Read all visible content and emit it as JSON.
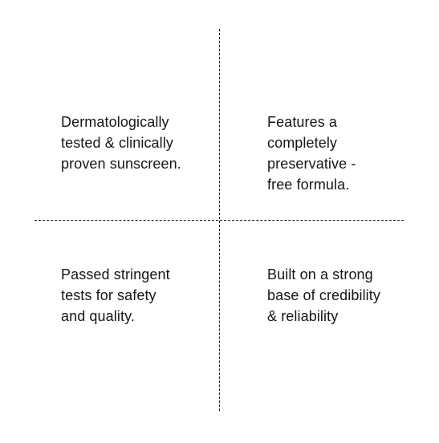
{
  "features": [
    {
      "lines": [
        "Dermatologically",
        "tested & clinically",
        "proven sunscreen."
      ]
    },
    {
      "lines": [
        "Features a",
        "completely",
        "preservative -",
        "free formula."
      ]
    },
    {
      "lines": [
        "Passed stringent",
        "tests for safety",
        "and quality."
      ]
    },
    {
      "lines": [
        "Built on a strong",
        "base of credibility",
        "& reliability"
      ]
    }
  ]
}
